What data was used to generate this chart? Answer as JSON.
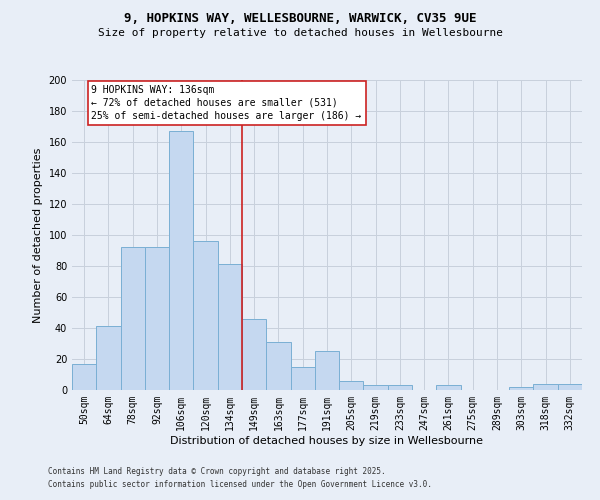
{
  "title_line1": "9, HOPKINS WAY, WELLESBOURNE, WARWICK, CV35 9UE",
  "title_line2": "Size of property relative to detached houses in Wellesbourne",
  "xlabel": "Distribution of detached houses by size in Wellesbourne",
  "ylabel": "Number of detached properties",
  "categories": [
    "50sqm",
    "64sqm",
    "78sqm",
    "92sqm",
    "106sqm",
    "120sqm",
    "134sqm",
    "149sqm",
    "163sqm",
    "177sqm",
    "191sqm",
    "205sqm",
    "219sqm",
    "233sqm",
    "247sqm",
    "261sqm",
    "275sqm",
    "289sqm",
    "303sqm",
    "318sqm",
    "332sqm"
  ],
  "values": [
    17,
    41,
    92,
    92,
    167,
    96,
    81,
    46,
    31,
    15,
    25,
    6,
    3,
    3,
    0,
    3,
    0,
    0,
    2,
    4,
    4
  ],
  "bar_color": "#c5d8f0",
  "bar_edge_color": "#7aafd4",
  "vline_color": "#cc2222",
  "vline_x": 6.5,
  "annotation_text": "9 HOPKINS WAY: 136sqm\n← 72% of detached houses are smaller (531)\n25% of semi-detached houses are larger (186) →",
  "annotation_box_facecolor": "#ffffff",
  "annotation_box_edgecolor": "#cc2222",
  "ylim": [
    0,
    200
  ],
  "yticks": [
    0,
    20,
    40,
    60,
    80,
    100,
    120,
    140,
    160,
    180,
    200
  ],
  "grid_color": "#c8d0dc",
  "fig_facecolor": "#e8eef7",
  "ax_facecolor": "#e8eef7",
  "footer_line1": "Contains HM Land Registry data © Crown copyright and database right 2025.",
  "footer_line2": "Contains public sector information licensed under the Open Government Licence v3.0.",
  "title1_fontsize": 9,
  "title2_fontsize": 8,
  "ylabel_fontsize": 8,
  "xlabel_fontsize": 8,
  "tick_fontsize": 7,
  "annotation_fontsize": 7,
  "footer_fontsize": 5.5
}
